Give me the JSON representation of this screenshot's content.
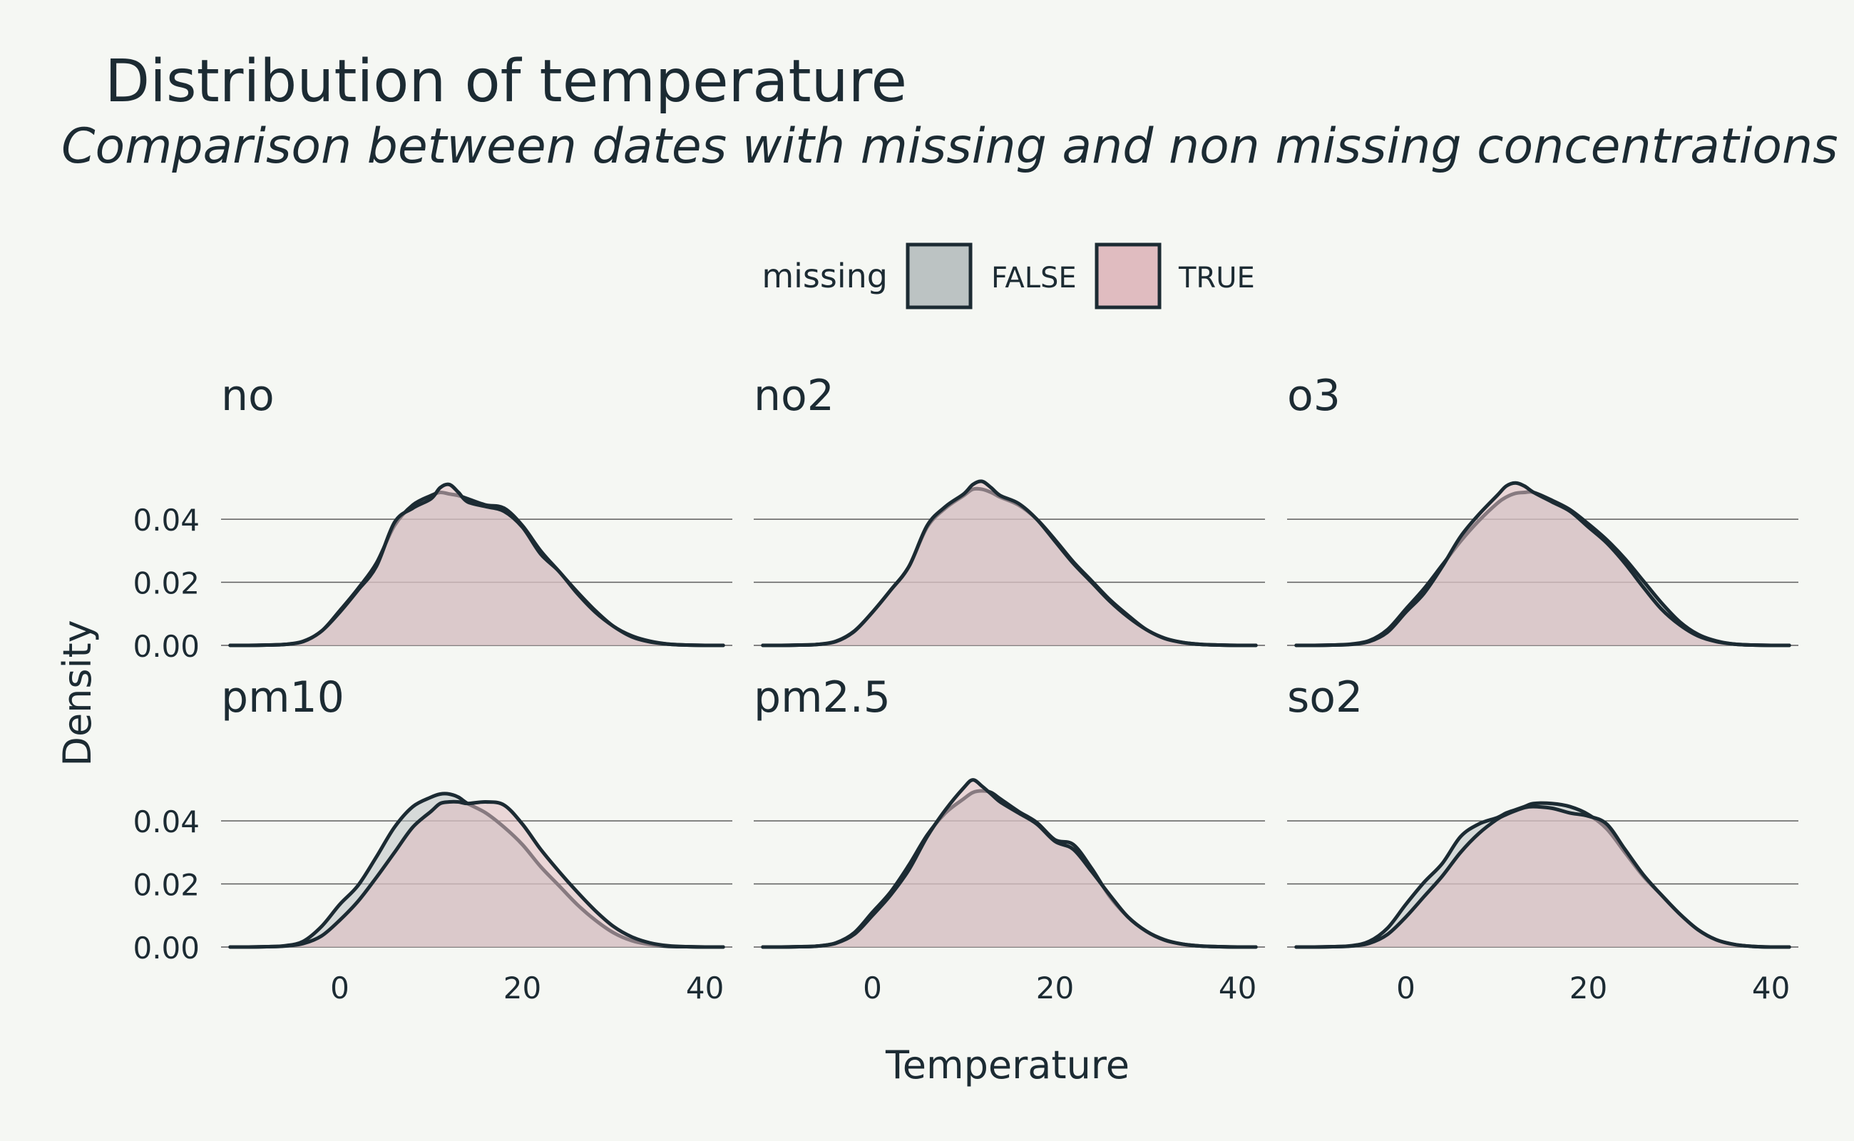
{
  "title": "Distribution of temperature",
  "subtitle": "Comparison between dates with missing and non missing concentrations",
  "colors": {
    "background": "#f5f7f3",
    "text": "#1c2b33",
    "outline": "#1c2b33",
    "false_fill": "#bcc3c3",
    "true_fill": "#e0bcc0",
    "gridline": "#5c5c5c"
  },
  "chart_data": {
    "type": "area",
    "subtype": "density",
    "facet_layout": "3 columns x 2 rows",
    "xlabel": "Temperature",
    "ylabel": "Density",
    "xlim": [
      -13,
      43
    ],
    "ylim": [
      0,
      0.052
    ],
    "x_ticks": [
      0,
      20,
      40
    ],
    "x_tick_labels": [
      "0",
      "20",
      "40"
    ],
    "y_ticks": [
      0,
      0.02,
      0.04
    ],
    "y_tick_labels": [
      "0.00",
      "0.02",
      "0.04"
    ],
    "grid": "horizontal major only",
    "legend": {
      "title": "missing",
      "position": "top",
      "entries": [
        {
          "label": "FALSE",
          "color": "#bcc3c3"
        },
        {
          "label": "TRUE",
          "color": "#e0bcc0"
        }
      ]
    },
    "x": [
      -12,
      -10,
      -8,
      -6,
      -4,
      -2,
      0,
      2,
      4,
      6,
      8,
      10,
      11,
      12,
      13,
      14,
      16,
      18,
      20,
      22,
      24,
      26,
      28,
      30,
      32,
      34,
      36,
      38,
      40,
      42
    ],
    "facets": [
      {
        "name": "no",
        "series": [
          {
            "name": "FALSE",
            "values": [
              0,
              0,
              0.0001,
              0.0003,
              0.0013,
              0.0045,
              0.011,
              0.018,
              0.026,
              0.038,
              0.0445,
              0.0475,
              0.0485,
              0.048,
              0.0475,
              0.0465,
              0.0445,
              0.0435,
              0.038,
              0.03,
              0.0235,
              0.017,
              0.011,
              0.006,
              0.003,
              0.0013,
              0.0004,
              0.0001,
              0,
              0
            ]
          },
          {
            "name": "TRUE",
            "values": [
              0,
              0,
              0.0001,
              0.0003,
              0.0012,
              0.0045,
              0.0105,
              0.0175,
              0.025,
              0.039,
              0.0435,
              0.0465,
              0.05,
              0.051,
              0.0485,
              0.0455,
              0.044,
              0.0425,
              0.0375,
              0.029,
              0.0235,
              0.0165,
              0.0105,
              0.006,
              0.0027,
              0.0011,
              0.0004,
              0.0001,
              0,
              0
            ]
          }
        ]
      },
      {
        "name": "no2",
        "series": [
          {
            "name": "FALSE",
            "values": [
              0,
              0,
              0.0001,
              0.0003,
              0.0013,
              0.0045,
              0.0105,
              0.0175,
              0.025,
              0.0375,
              0.0435,
              0.0475,
              0.0495,
              0.0495,
              0.0485,
              0.047,
              0.0445,
              0.04,
              0.0335,
              0.0265,
              0.0205,
              0.0145,
              0.0095,
              0.005,
              0.0023,
              0.0009,
              0.0003,
              0.0001,
              0,
              0
            ]
          },
          {
            "name": "TRUE",
            "values": [
              0,
              0,
              0.0001,
              0.0003,
              0.0012,
              0.0044,
              0.0105,
              0.0175,
              0.025,
              0.038,
              0.044,
              0.048,
              0.051,
              0.052,
              0.05,
              0.0475,
              0.045,
              0.04,
              0.033,
              0.026,
              0.02,
              0.014,
              0.009,
              0.005,
              0.0022,
              0.0009,
              0.0003,
              0.0001,
              0,
              0
            ]
          }
        ]
      },
      {
        "name": "o3",
        "series": [
          {
            "name": "FALSE",
            "values": [
              0,
              0,
              0.0001,
              0.0004,
              0.0015,
              0.005,
              0.0115,
              0.018,
              0.0255,
              0.033,
              0.0395,
              0.045,
              0.047,
              0.0482,
              0.0485,
              0.0485,
              0.046,
              0.043,
              0.0385,
              0.0335,
              0.0275,
              0.0205,
              0.0135,
              0.0075,
              0.0035,
              0.0014,
              0.0004,
              0.0001,
              0,
              0
            ]
          },
          {
            "name": "TRUE",
            "values": [
              0,
              0,
              0.0001,
              0.0003,
              0.0012,
              0.0042,
              0.0105,
              0.0165,
              0.025,
              0.0345,
              0.0415,
              0.0475,
              0.0505,
              0.0515,
              0.0505,
              0.0485,
              0.0455,
              0.0425,
              0.0375,
              0.0325,
              0.026,
              0.0185,
              0.0115,
              0.0065,
              0.003,
              0.0012,
              0.0004,
              0.0001,
              0,
              0
            ]
          }
        ]
      },
      {
        "name": "pm10",
        "series": [
          {
            "name": "FALSE",
            "values": [
              0,
              0,
              0.0001,
              0.0004,
              0.0018,
              0.0065,
              0.0135,
              0.0195,
              0.0285,
              0.038,
              0.0445,
              0.0475,
              0.0485,
              0.0485,
              0.0475,
              0.0455,
              0.0425,
              0.038,
              0.0325,
              0.0255,
              0.0195,
              0.0135,
              0.0085,
              0.0045,
              0.002,
              0.0008,
              0.0002,
              0.0001,
              0,
              0
            ]
          },
          {
            "name": "TRUE",
            "values": [
              0,
              0,
              0.0001,
              0.0003,
              0.0011,
              0.0035,
              0.0085,
              0.0145,
              0.022,
              0.03,
              0.038,
              0.043,
              0.0455,
              0.046,
              0.046,
              0.0455,
              0.046,
              0.045,
              0.039,
              0.031,
              0.024,
              0.0175,
              0.0115,
              0.0065,
              0.0032,
              0.0013,
              0.0004,
              0.0001,
              0,
              0
            ]
          }
        ]
      },
      {
        "name": "pm2.5",
        "series": [
          {
            "name": "FALSE",
            "values": [
              0,
              0,
              0.0001,
              0.0003,
              0.0013,
              0.0045,
              0.011,
              0.0175,
              0.026,
              0.0355,
              0.0425,
              0.047,
              0.049,
              0.0495,
              0.049,
              0.047,
              0.043,
              0.0395,
              0.034,
              0.0325,
              0.025,
              0.016,
              0.0095,
              0.005,
              0.0023,
              0.0009,
              0.0003,
              0.0001,
              0,
              0
            ]
          },
          {
            "name": "TRUE",
            "values": [
              0,
              0,
              0.0001,
              0.0003,
              0.0012,
              0.004,
              0.01,
              0.0165,
              0.0245,
              0.035,
              0.0435,
              0.0505,
              0.053,
              0.051,
              0.0485,
              0.046,
              0.0425,
              0.039,
              0.0335,
              0.031,
              0.024,
              0.0165,
              0.0095,
              0.005,
              0.0022,
              0.0009,
              0.0003,
              0.0001,
              0,
              0
            ]
          }
        ]
      },
      {
        "name": "so2",
        "series": [
          {
            "name": "FALSE",
            "values": [
              0,
              0,
              0.0001,
              0.0004,
              0.0018,
              0.006,
              0.0135,
              0.0205,
              0.0265,
              0.035,
              0.039,
              0.041,
              0.0425,
              0.0435,
              0.0445,
              0.0455,
              0.0455,
              0.0445,
              0.042,
              0.0375,
              0.03,
              0.0225,
              0.0165,
              0.0105,
              0.0055,
              0.0023,
              0.0008,
              0.0002,
              0,
              0
            ]
          },
          {
            "name": "TRUE",
            "values": [
              0,
              0,
              0.0001,
              0.0003,
              0.0012,
              0.004,
              0.0095,
              0.016,
              0.0225,
              0.03,
              0.036,
              0.0405,
              0.042,
              0.0432,
              0.0442,
              0.0445,
              0.044,
              0.0425,
              0.0415,
              0.039,
              0.031,
              0.023,
              0.0165,
              0.0105,
              0.0055,
              0.0023,
              0.0008,
              0.0002,
              0,
              0
            ]
          }
        ]
      }
    ]
  }
}
